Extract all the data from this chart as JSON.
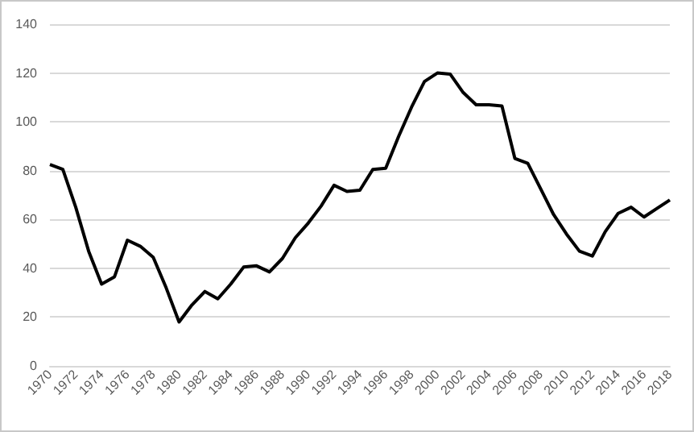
{
  "chart_data": {
    "type": "line",
    "categories": [
      "1970",
      null,
      "1972",
      null,
      "1974",
      null,
      "1976",
      null,
      "1978",
      null,
      "1980",
      null,
      "1982",
      null,
      "1984",
      null,
      "1986",
      null,
      "1988",
      null,
      "1990",
      null,
      "1992",
      null,
      "1994",
      null,
      "1996",
      null,
      "1998",
      null,
      "2000",
      null,
      "2002",
      null,
      "2004",
      null,
      "2006",
      null,
      "2008",
      null,
      "2010",
      null,
      "2012",
      null,
      "2014",
      null,
      "2016",
      null,
      "2018"
    ],
    "series": [
      {
        "color": "#000000",
        "values": [
          82.5,
          80.5,
          65,
          47,
          33.5,
          36.5,
          51.5,
          49,
          44.5,
          32,
          18,
          25,
          30.5,
          27.5,
          33.5,
          40.5,
          41,
          38.5,
          44,
          52.5,
          58.5,
          65.5,
          74,
          71.5,
          72,
          80.5,
          81,
          94,
          106,
          116.5,
          120,
          119.5,
          112,
          107,
          107,
          106.5,
          85,
          83,
          72.5,
          62,
          54,
          47,
          45,
          55,
          62.5,
          65,
          61,
          64.5,
          68
        ]
      }
    ],
    "ylim": [
      0,
      140
    ],
    "yticks": [
      0,
      20,
      40,
      60,
      80,
      100,
      120,
      140
    ],
    "grid": "y",
    "marker": "none",
    "line_style": "solid"
  }
}
